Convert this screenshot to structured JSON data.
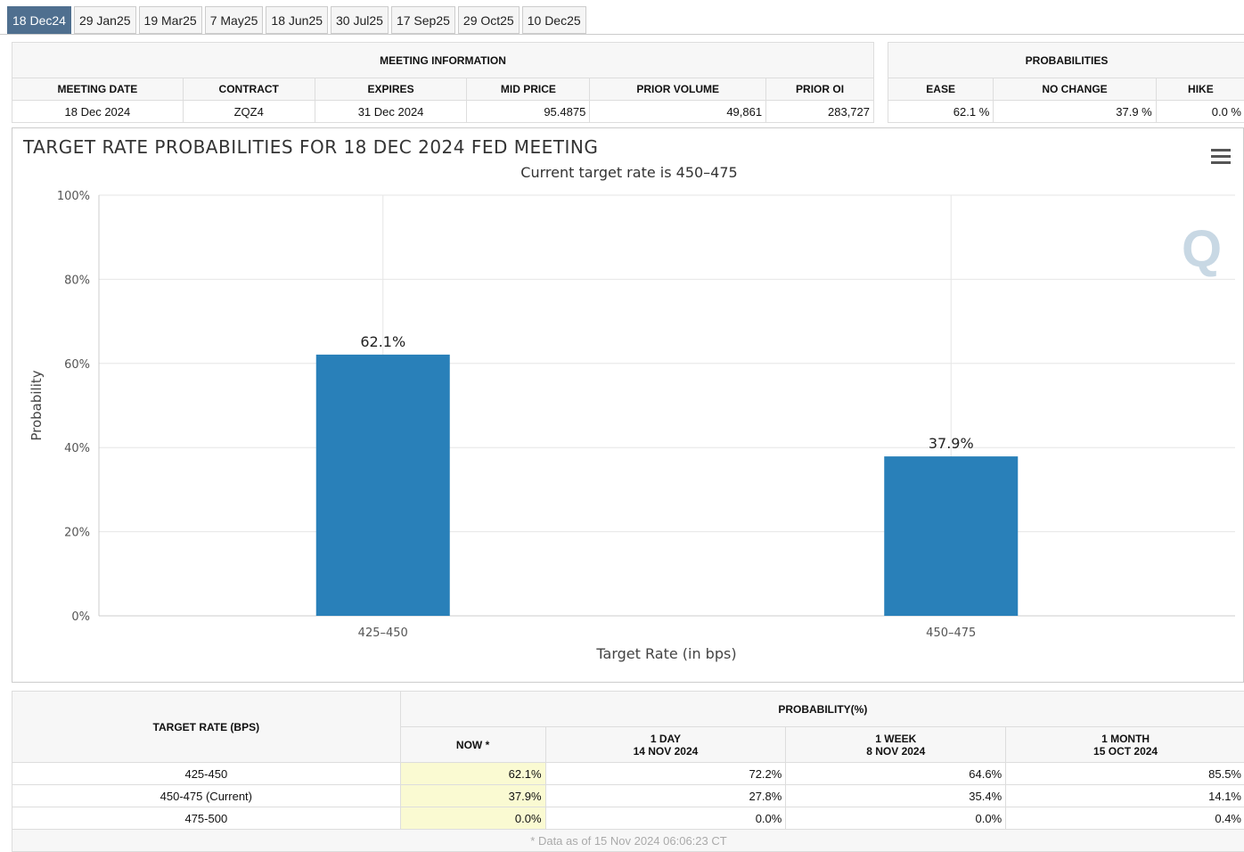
{
  "tabs": [
    "18 Dec24",
    "29 Jan25",
    "19 Mar25",
    "7 May25",
    "18 Jun25",
    "30 Jul25",
    "17 Sep25",
    "29 Oct25",
    "10 Dec25"
  ],
  "meeting_info": {
    "title": "MEETING INFORMATION",
    "headers": [
      "MEETING DATE",
      "CONTRACT",
      "EXPIRES",
      "MID PRICE",
      "PRIOR VOLUME",
      "PRIOR OI"
    ],
    "values": [
      "18 Dec 2024",
      "ZQZ4",
      "31 Dec 2024",
      "95.4875",
      "49,861",
      "283,727"
    ]
  },
  "probabilities": {
    "title": "PROBABILITIES",
    "headers": [
      "EASE",
      "NO CHANGE",
      "HIKE"
    ],
    "values": [
      "62.1 %",
      "37.9 %",
      "0.0 %"
    ]
  },
  "chart_data": {
    "type": "bar",
    "title": "TARGET RATE PROBABILITIES FOR 18 DEC 2024 FED MEETING",
    "subtitle": "Current target rate is 450–475",
    "xlabel": "Target Rate (in bps)",
    "ylabel": "Probability",
    "categories": [
      "425–450",
      "450–475"
    ],
    "values": [
      62.1,
      37.9
    ],
    "data_labels": [
      "62.1%",
      "37.9%"
    ],
    "ylim": [
      0,
      100
    ],
    "yticks": [
      "0%",
      "20%",
      "40%",
      "60%",
      "80%",
      "100%"
    ],
    "grid": true,
    "color": "#2980b9",
    "menu_icon": "hamburger-menu-icon"
  },
  "history": {
    "title_rate": "TARGET RATE (BPS)",
    "title_prob": "PROBABILITY(%)",
    "cols": [
      [
        "NOW *",
        ""
      ],
      [
        "1 DAY",
        "14 NOV 2024"
      ],
      [
        "1 WEEK",
        "8 NOV 2024"
      ],
      [
        "1 MONTH",
        "15 OCT 2024"
      ]
    ],
    "rows": [
      [
        "425-450",
        "62.1%",
        "72.2%",
        "64.6%",
        "85.5%"
      ],
      [
        "450-475 (Current)",
        "37.9%",
        "27.8%",
        "35.4%",
        "14.1%"
      ],
      [
        "475-500",
        "0.0%",
        "0.0%",
        "0.0%",
        "0.4%"
      ]
    ],
    "footnote": "* Data as of 15 Nov 2024 06:06:23 CT"
  }
}
